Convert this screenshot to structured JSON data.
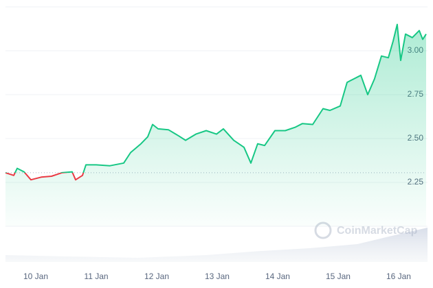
{
  "chart_data": {
    "type": "line",
    "watermark": "CoinMarketCap",
    "x": [
      9.5,
      9.636,
      9.693,
      9.807,
      9.92,
      10.091,
      10.261,
      10.432,
      10.602,
      10.659,
      10.773,
      10.83,
      11.0,
      11.227,
      11.455,
      11.568,
      11.739,
      11.852,
      11.932,
      12.023,
      12.193,
      12.364,
      12.477,
      12.648,
      12.818,
      12.989,
      13.102,
      13.273,
      13.443,
      13.557,
      13.67,
      13.784,
      13.955,
      14.125,
      14.295,
      14.409,
      14.58,
      14.75,
      14.864,
      15.034,
      15.148,
      15.261,
      15.375,
      15.489,
      15.602,
      15.716,
      15.83,
      15.909,
      15.977,
      16.034,
      16.114,
      16.227,
      16.341,
      16.398,
      16.455
    ],
    "series": [
      {
        "values": [
          2.305,
          2.29,
          2.33,
          2.31,
          2.265,
          2.28,
          2.285,
          2.305,
          2.31,
          2.265,
          2.29,
          2.35,
          2.35,
          2.345,
          2.36,
          2.42,
          2.47,
          2.51,
          2.58,
          2.555,
          2.55,
          2.515,
          2.49,
          2.525,
          2.545,
          2.525,
          2.555,
          2.49,
          2.45,
          2.36,
          2.47,
          2.46,
          2.545,
          2.545,
          2.565,
          2.585,
          2.58,
          2.67,
          2.66,
          2.685,
          2.82,
          2.84,
          2.86,
          2.75,
          2.84,
          2.97,
          2.96,
          3.055,
          3.15,
          2.945,
          3.095,
          3.075,
          3.115,
          3.065,
          3.095
        ]
      }
    ],
    "baseline": 2.305,
    "up_color": "#16c784",
    "down_color": "#ea3943",
    "xlim": [
      9.5,
      16.455
    ],
    "xticks": [
      {
        "value": 10,
        "label": "10 Jan"
      },
      {
        "value": 11,
        "label": "11 Jan"
      },
      {
        "value": 12,
        "label": "12 Jan"
      },
      {
        "value": 13,
        "label": "13 Jan"
      },
      {
        "value": 14,
        "label": "14 Jan"
      },
      {
        "value": 15,
        "label": "15 Jan"
      },
      {
        "value": 16,
        "label": "16 Jan"
      }
    ],
    "ylim": [
      2.0,
      3.25
    ],
    "yticks": [
      2.25,
      {
        "value": 2.5,
        "label": "2.50"
      },
      2.75,
      {
        "value": 3.0,
        "label": "3.00"
      }
    ],
    "grid": true
  }
}
